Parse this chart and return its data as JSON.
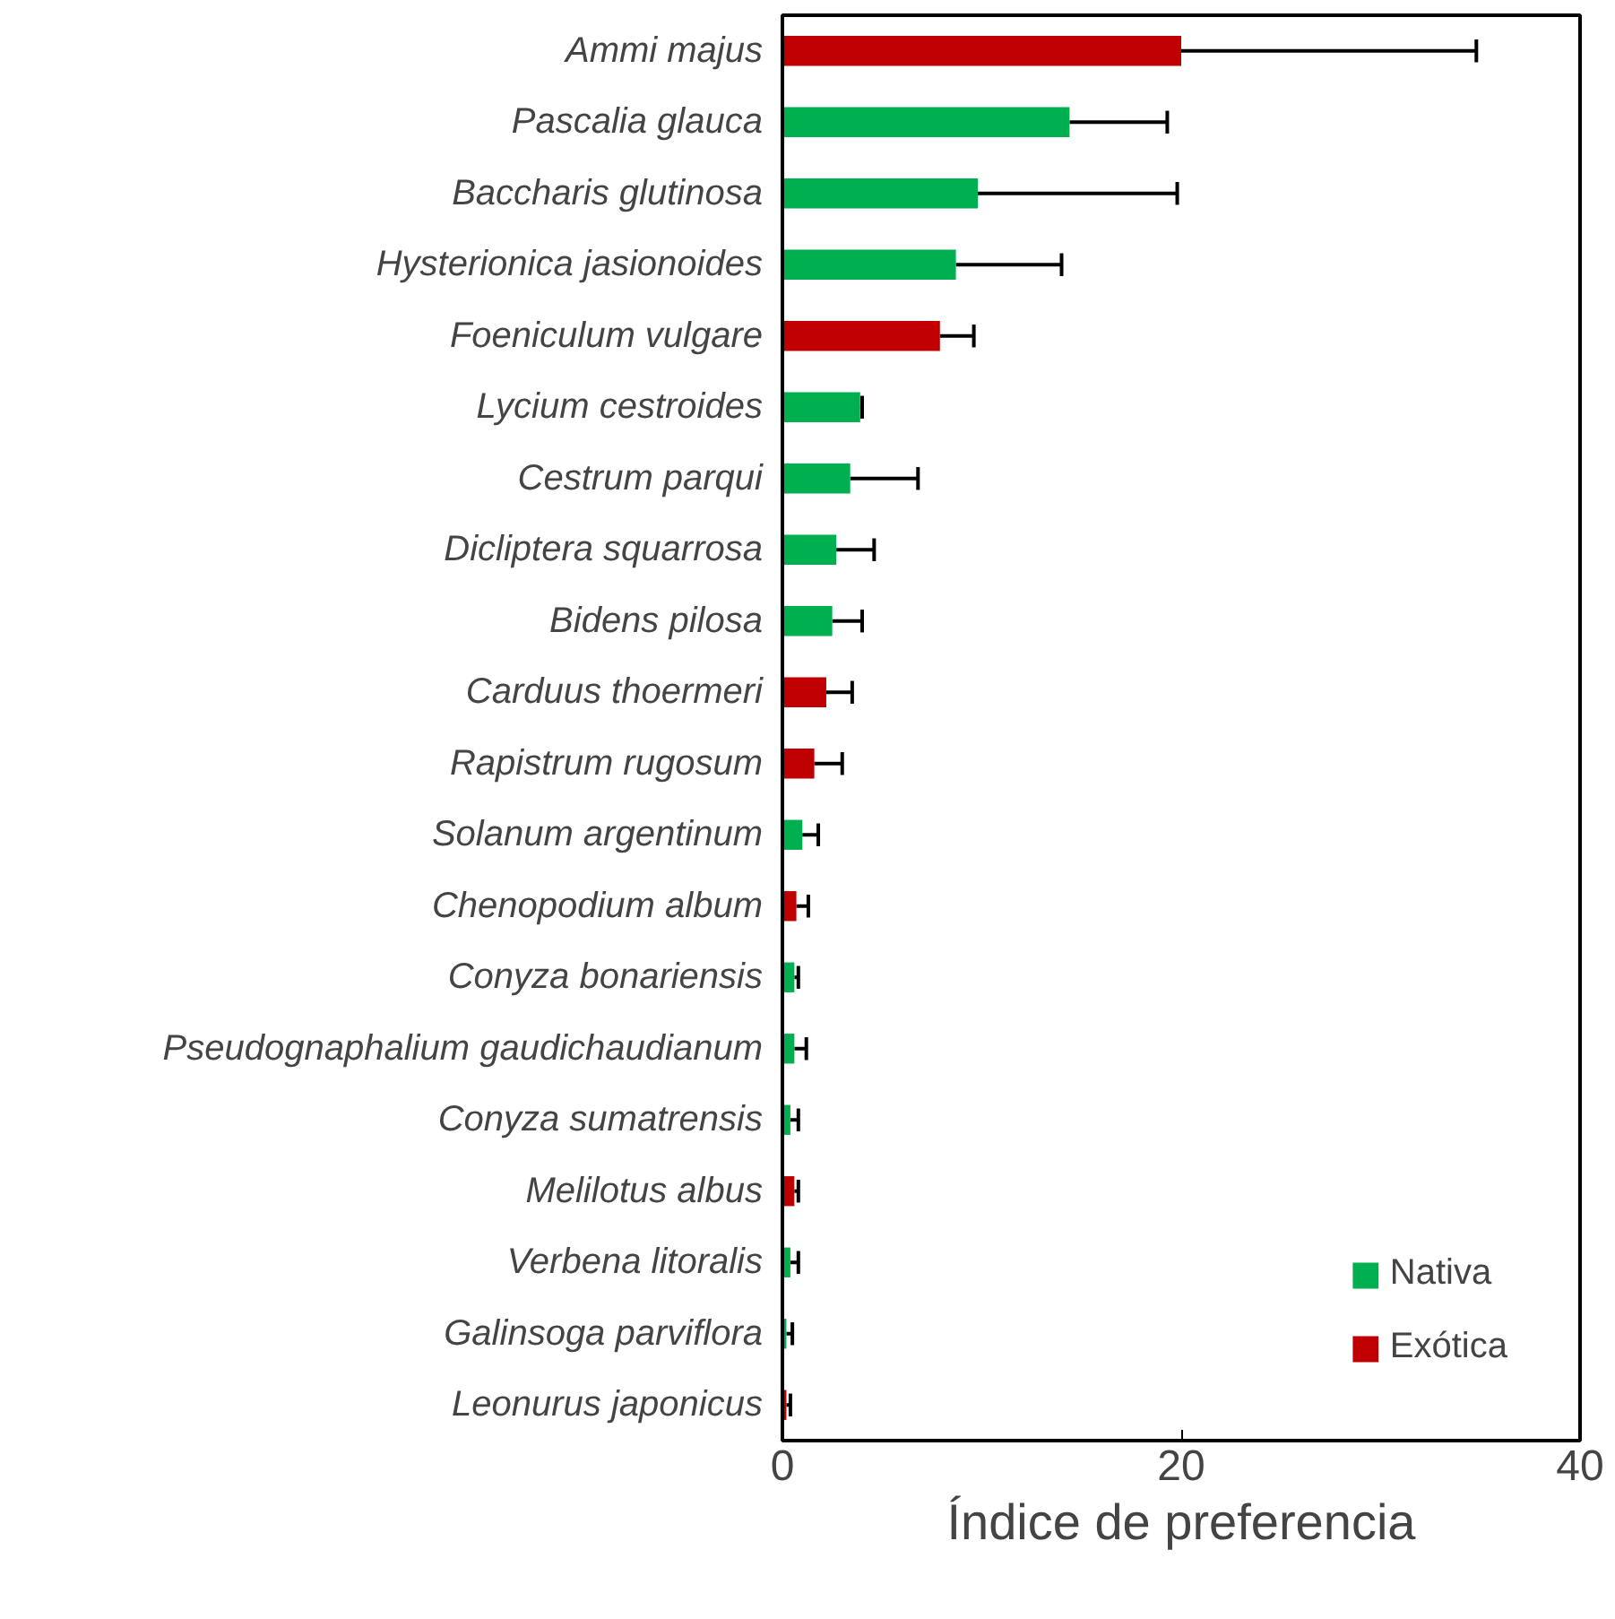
{
  "chart_data": {
    "type": "bar",
    "orientation": "horizontal",
    "xlabel": "Índice de preferencia",
    "categories": [
      "Ammi majus",
      "Pascalia glauca",
      "Baccharis glutinosa",
      "Hysterionica jasionoides",
      "Foeniculum vulgare",
      "Lycium cestroides",
      "Cestrum parqui",
      "Dicliptera squarrosa",
      "Bidens pilosa",
      "Carduus thoermeri",
      "Rapistrum rugosum",
      "Solanum argentinum",
      "Chenopodium album",
      "Conyza bonariensis",
      "Pseudognaphalium gaudichaudianum",
      "Conyza sumatrensis",
      "Melilotus albus",
      "Verbena litoralis",
      "Galinsoga parviflora",
      "Leonurus japonicus"
    ],
    "series": [
      {
        "name": "Nativa",
        "color": "#00b050",
        "values": [
          null,
          14.4,
          9.8,
          8.7,
          null,
          3.9,
          3.4,
          2.7,
          2.5,
          null,
          null,
          1.0,
          null,
          0.6,
          0.6,
          0.4,
          null,
          0.4,
          0.2,
          null
        ],
        "errors": [
          null,
          [
            14.4,
            19.3
          ],
          [
            9.8,
            19.8
          ],
          [
            8.7,
            14.0
          ],
          null,
          [
            3.9,
            4.0
          ],
          [
            3.4,
            6.8
          ],
          [
            2.7,
            4.6
          ],
          [
            2.5,
            4.0
          ],
          null,
          null,
          [
            1.0,
            1.8
          ],
          null,
          [
            0.6,
            0.8
          ],
          [
            0.6,
            1.2
          ],
          [
            0.4,
            0.8
          ],
          null,
          [
            0.4,
            0.8
          ],
          [
            0.2,
            0.5
          ],
          null
        ]
      },
      {
        "name": "Exótica",
        "color": "#c00000",
        "values": [
          20.0,
          null,
          null,
          null,
          7.9,
          null,
          null,
          null,
          null,
          2.2,
          1.6,
          null,
          0.7,
          null,
          null,
          null,
          0.6,
          null,
          null,
          0.2
        ],
        "errors": [
          [
            20.0,
            34.8
          ],
          null,
          null,
          null,
          [
            7.9,
            9.6
          ],
          null,
          null,
          null,
          null,
          [
            2.2,
            3.5
          ],
          [
            1.6,
            3.0
          ],
          null,
          [
            0.7,
            1.3
          ],
          null,
          null,
          null,
          [
            0.6,
            0.8
          ],
          null,
          null,
          [
            0.2,
            0.4
          ]
        ]
      }
    ],
    "xlim": [
      0,
      40
    ],
    "xticks": [
      0,
      20,
      40
    ],
    "grid": false,
    "legend": "bottom right"
  }
}
